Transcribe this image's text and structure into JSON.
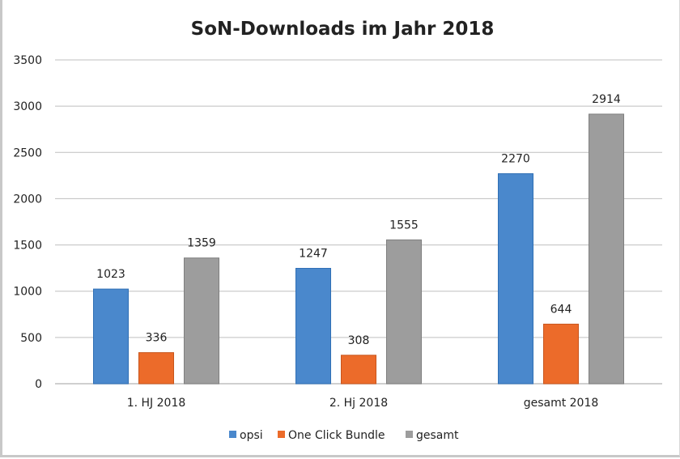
{
  "chart_data": {
    "type": "bar",
    "title": "SoN-Downloads im Jahr 2018",
    "categories": [
      "1. HJ 2018",
      "2. Hj 2018",
      "gesamt 2018"
    ],
    "series": [
      {
        "name": "opsi",
        "values": [
          1023,
          1247,
          2270
        ],
        "color": "#4a88cc"
      },
      {
        "name": "One Click Bundle",
        "values": [
          336,
          308,
          644
        ],
        "color": "#ec6b2a"
      },
      {
        "name": "gesamt",
        "values": [
          1359,
          1555,
          2914
        ],
        "color": "#9d9d9d"
      }
    ],
    "xlabel": "",
    "ylabel": "",
    "ylim": [
      0,
      3500
    ],
    "yticks": [
      0,
      500,
      1000,
      1500,
      2000,
      2500,
      3000,
      3500
    ],
    "grid": true,
    "legend": "bottom",
    "data_labels": true
  }
}
